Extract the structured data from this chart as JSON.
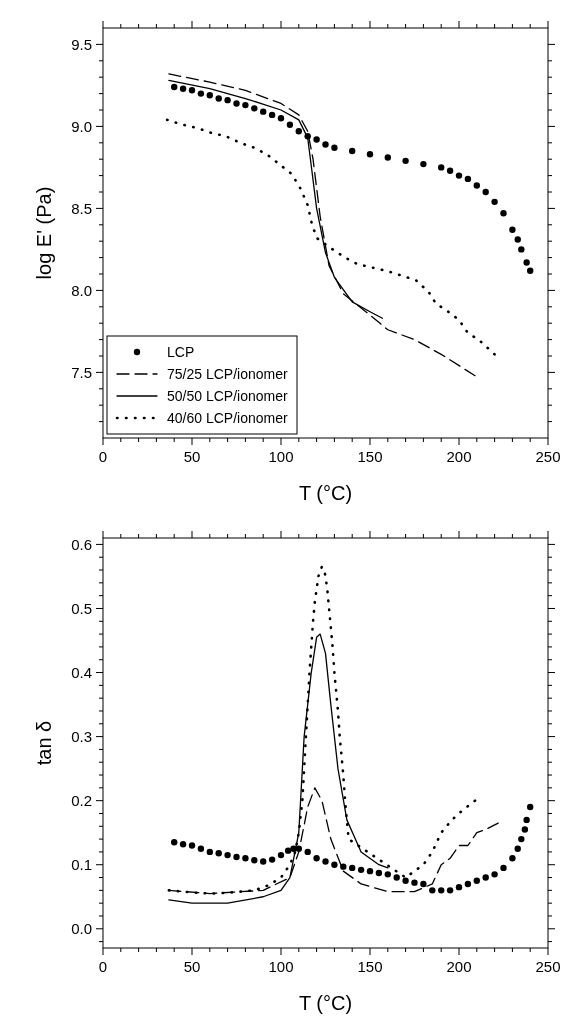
{
  "chart_data": [
    {
      "type": "line",
      "xlabel": "T (°C)",
      "ylabel": "log E' (Pa)",
      "xlim": [
        0,
        250
      ],
      "ylim": [
        7.1,
        9.6
      ],
      "xticks": [
        0,
        {
          "value": 10,
          "label": null
        },
        {
          "value": 20,
          "label": null
        },
        {
          "value": 30,
          "label": null
        },
        {
          "value": 40,
          "label": null
        },
        50,
        {
          "value": 60,
          "label": null
        },
        {
          "value": 70,
          "label": null
        },
        {
          "value": 80,
          "label": null
        },
        {
          "value": 90,
          "label": null
        },
        100,
        {
          "value": 110,
          "label": null
        },
        {
          "value": 120,
          "label": null
        },
        {
          "value": 130,
          "label": null
        },
        {
          "value": 140,
          "label": null
        },
        150,
        {
          "value": 160,
          "label": null
        },
        {
          "value": 170,
          "label": null
        },
        {
          "value": 180,
          "label": null
        },
        {
          "value": 190,
          "label": null
        },
        200,
        {
          "value": 210,
          "label": null
        },
        {
          "value": 220,
          "label": null
        },
        {
          "value": 230,
          "label": null
        },
        {
          "value": 240,
          "label": null
        },
        250
      ],
      "yticks": [
        {
          "value": 7.2,
          "label": null
        },
        {
          "value": 7.3,
          "label": null
        },
        {
          "value": 7.4,
          "label": null
        },
        {
          "value": 7.5,
          "label": "7.5"
        },
        {
          "value": 7.6,
          "label": null
        },
        {
          "value": 7.7,
          "label": null
        },
        {
          "value": 7.8,
          "label": null
        },
        {
          "value": 7.9,
          "label": null
        },
        {
          "value": 8,
          "label": "8.0"
        },
        {
          "value": 8.1,
          "label": null
        },
        {
          "value": 8.2,
          "label": null
        },
        {
          "value": 8.3,
          "label": null
        },
        {
          "value": 8.4,
          "label": null
        },
        {
          "value": 8.5,
          "label": "8.5"
        },
        {
          "value": 8.6,
          "label": null
        },
        {
          "value": 8.7,
          "label": null
        },
        {
          "value": 8.8,
          "label": null
        },
        {
          "value": 8.9,
          "label": null
        },
        {
          "value": 9,
          "label": "9.0"
        },
        {
          "value": 9.1,
          "label": null
        },
        {
          "value": 9.2,
          "label": null
        },
        {
          "value": 9.3,
          "label": null
        },
        {
          "value": 9.4,
          "label": null
        },
        {
          "value": 9.5,
          "label": "9.5"
        }
      ],
      "legend": "bottom left",
      "grid": false,
      "series": [
        {
          "name": "LCP",
          "type": "scatter",
          "marker": "circle",
          "color": "#000000",
          "x": [
            40,
            45,
            50,
            55,
            60,
            65,
            70,
            75,
            80,
            85,
            90,
            95,
            100,
            105,
            110,
            115,
            120,
            125,
            130,
            140,
            150,
            160,
            170,
            180,
            190,
            195,
            200,
            205,
            210,
            215,
            220,
            225,
            230,
            233,
            235,
            238,
            240
          ],
          "values": [
            9.24,
            9.23,
            9.22,
            9.2,
            9.19,
            9.17,
            9.16,
            9.14,
            9.13,
            9.11,
            9.09,
            9.07,
            9.05,
            9.01,
            8.97,
            8.94,
            8.92,
            8.89,
            8.87,
            8.85,
            8.83,
            8.81,
            8.79,
            8.77,
            8.75,
            8.73,
            8.7,
            8.68,
            8.64,
            8.6,
            8.54,
            8.47,
            8.37,
            8.31,
            8.25,
            8.17,
            8.12
          ]
        },
        {
          "name": "75/25 LCP/ionomer",
          "type": "line",
          "line_style": "dashed",
          "color": "#000000",
          "x": [
            37,
            60,
            80,
            100,
            110,
            115,
            118,
            122,
            127,
            135,
            150,
            160,
            175,
            190,
            209
          ],
          "values": [
            9.32,
            9.27,
            9.22,
            9.14,
            9.07,
            8.97,
            8.8,
            8.45,
            8.15,
            7.98,
            7.85,
            7.76,
            7.7,
            7.61,
            7.48
          ]
        },
        {
          "name": "50/50 LCP/ionomer",
          "type": "line",
          "line_style": "solid",
          "color": "#000000",
          "x": [
            37,
            60,
            80,
            100,
            110,
            115,
            117,
            120,
            125,
            130,
            140,
            150,
            157
          ],
          "values": [
            9.28,
            9.23,
            9.17,
            9.1,
            9.04,
            8.93,
            8.76,
            8.5,
            8.23,
            8.08,
            7.93,
            7.87,
            7.83
          ]
        },
        {
          "name": "40/60 LCP/ionomer",
          "type": "line",
          "line_style": "dotted",
          "color": "#000000",
          "x": [
            36,
            45,
            53,
            61,
            69,
            77,
            85,
            92,
            99,
            106,
            111,
            115,
            117,
            120,
            129,
            136,
            143,
            151,
            159,
            168,
            176,
            183,
            187,
            194,
            200,
            205,
            211,
            220
          ],
          "values": [
            9.04,
            9.01,
            8.99,
            8.96,
            8.94,
            8.9,
            8.87,
            8.83,
            8.77,
            8.71,
            8.62,
            8.52,
            8.42,
            8.32,
            8.25,
            8.2,
            8.16,
            8.14,
            8.12,
            8.09,
            8.06,
            7.99,
            7.92,
            7.87,
            7.82,
            7.74,
            7.7,
            7.61
          ]
        }
      ]
    },
    {
      "type": "line",
      "xlabel": "T (°C)",
      "ylabel": "tan δ",
      "xlim": [
        0,
        250
      ],
      "ylim": [
        -0.03,
        0.61
      ],
      "xticks": [
        0,
        {
          "value": 10,
          "label": null
        },
        {
          "value": 20,
          "label": null
        },
        {
          "value": 30,
          "label": null
        },
        {
          "value": 40,
          "label": null
        },
        50,
        {
          "value": 60,
          "label": null
        },
        {
          "value": 70,
          "label": null
        },
        {
          "value": 80,
          "label": null
        },
        {
          "value": 90,
          "label": null
        },
        100,
        {
          "value": 110,
          "label": null
        },
        {
          "value": 120,
          "label": null
        },
        {
          "value": 130,
          "label": null
        },
        {
          "value": 140,
          "label": null
        },
        150,
        {
          "value": 160,
          "label": null
        },
        {
          "value": 170,
          "label": null
        },
        {
          "value": 180,
          "label": null
        },
        {
          "value": 190,
          "label": null
        },
        200,
        {
          "value": 210,
          "label": null
        },
        {
          "value": 220,
          "label": null
        },
        {
          "value": 230,
          "label": null
        },
        {
          "value": 240,
          "label": null
        },
        250
      ],
      "yticks": [
        {
          "value": -0.02,
          "label": null
        },
        {
          "value": 0,
          "label": "0.0"
        },
        {
          "value": 0.02,
          "label": null
        },
        {
          "value": 0.04,
          "label": null
        },
        {
          "value": 0.06,
          "label": null
        },
        {
          "value": 0.08,
          "label": null
        },
        {
          "value": 0.1,
          "label": "0.1"
        },
        {
          "value": 0.12,
          "label": null
        },
        {
          "value": 0.14,
          "label": null
        },
        {
          "value": 0.16,
          "label": null
        },
        {
          "value": 0.18,
          "label": null
        },
        {
          "value": 0.2,
          "label": "0.2"
        },
        {
          "value": 0.22,
          "label": null
        },
        {
          "value": 0.24,
          "label": null
        },
        {
          "value": 0.26,
          "label": null
        },
        {
          "value": 0.28,
          "label": null
        },
        {
          "value": 0.3,
          "label": "0.3"
        },
        {
          "value": 0.32,
          "label": null
        },
        {
          "value": 0.34,
          "label": null
        },
        {
          "value": 0.36,
          "label": null
        },
        {
          "value": 0.38,
          "label": null
        },
        {
          "value": 0.4,
          "label": "0.4"
        },
        {
          "value": 0.42,
          "label": null
        },
        {
          "value": 0.44,
          "label": null
        },
        {
          "value": 0.46,
          "label": null
        },
        {
          "value": 0.48,
          "label": null
        },
        {
          "value": 0.5,
          "label": "0.5"
        },
        {
          "value": 0.52,
          "label": null
        },
        {
          "value": 0.54,
          "label": null
        },
        {
          "value": 0.56,
          "label": null
        },
        {
          "value": 0.58,
          "label": null
        },
        {
          "value": 0.6,
          "label": "0.6"
        }
      ],
      "legend": false,
      "grid": false,
      "series": [
        {
          "type": "scatter",
          "marker": "circle",
          "color": "#000000",
          "x": [
            40,
            45,
            50,
            55,
            60,
            65,
            70,
            75,
            80,
            85,
            90,
            95,
            100,
            104,
            107,
            110,
            115,
            120,
            125,
            130,
            135,
            140,
            145,
            150,
            155,
            160,
            165,
            170,
            175,
            180,
            185,
            190,
            195,
            200,
            205,
            210,
            215,
            220,
            225,
            230,
            233,
            235,
            237,
            238,
            240
          ],
          "values": [
            0.135,
            0.132,
            0.13,
            0.125,
            0.12,
            0.118,
            0.115,
            0.112,
            0.11,
            0.107,
            0.105,
            0.108,
            0.115,
            0.122,
            0.125,
            0.125,
            0.12,
            0.11,
            0.105,
            0.1,
            0.097,
            0.095,
            0.092,
            0.09,
            0.087,
            0.085,
            0.08,
            0.075,
            0.072,
            0.07,
            0.06,
            0.06,
            0.06,
            0.065,
            0.07,
            0.075,
            0.08,
            0.085,
            0.095,
            0.11,
            0.125,
            0.14,
            0.155,
            0.17,
            0.19
          ]
        },
        {
          "type": "line",
          "line_style": "dashed",
          "color": "#000000",
          "x": [
            37,
            60,
            90,
            105,
            110,
            115,
            119,
            123,
            128,
            135,
            145,
            160,
            175,
            185,
            190,
            195,
            200,
            205,
            210,
            215,
            222
          ],
          "values": [
            0.06,
            0.055,
            0.06,
            0.08,
            0.12,
            0.19,
            0.22,
            0.2,
            0.14,
            0.09,
            0.07,
            0.058,
            0.058,
            0.07,
            0.1,
            0.11,
            0.13,
            0.13,
            0.15,
            0.155,
            0.165
          ]
        },
        {
          "type": "line",
          "line_style": "solid",
          "color": "#000000",
          "x": [
            37,
            50,
            70,
            90,
            100,
            105,
            110,
            113,
            117,
            120,
            122,
            125,
            128,
            132,
            137,
            145,
            155,
            160
          ],
          "values": [
            0.045,
            0.04,
            0.04,
            0.05,
            0.06,
            0.08,
            0.15,
            0.3,
            0.4,
            0.455,
            0.46,
            0.43,
            0.35,
            0.25,
            0.17,
            0.12,
            0.1,
            0.095
          ]
        },
        {
          "type": "line",
          "line_style": "dotted",
          "color": "#000000",
          "x": [
            37,
            45,
            53,
            61,
            69,
            77,
            85,
            93,
            100,
            105,
            108,
            110,
            112,
            113,
            114,
            115,
            116,
            117,
            118,
            119,
            120,
            121,
            122,
            123,
            124,
            125,
            126,
            127,
            128,
            129,
            130,
            131,
            132,
            133,
            134,
            135,
            136,
            137,
            138,
            170,
            175,
            180,
            185,
            190,
            196,
            202,
            209
          ],
          "values": [
            0.06,
            0.058,
            0.056,
            0.055,
            0.056,
            0.058,
            0.06,
            0.068,
            0.08,
            0.1,
            0.12,
            0.15,
            0.2,
            0.25,
            0.3,
            0.35,
            0.4,
            0.44,
            0.48,
            0.51,
            0.53,
            0.55,
            0.56,
            0.565,
            0.563,
            0.55,
            0.53,
            0.5,
            0.47,
            0.44,
            0.4,
            0.37,
            0.34,
            0.3,
            0.27,
            0.24,
            0.2,
            0.17,
            0.14,
            0.08,
            0.09,
            0.1,
            0.12,
            0.15,
            0.17,
            0.185,
            0.2
          ]
        }
      ]
    }
  ]
}
